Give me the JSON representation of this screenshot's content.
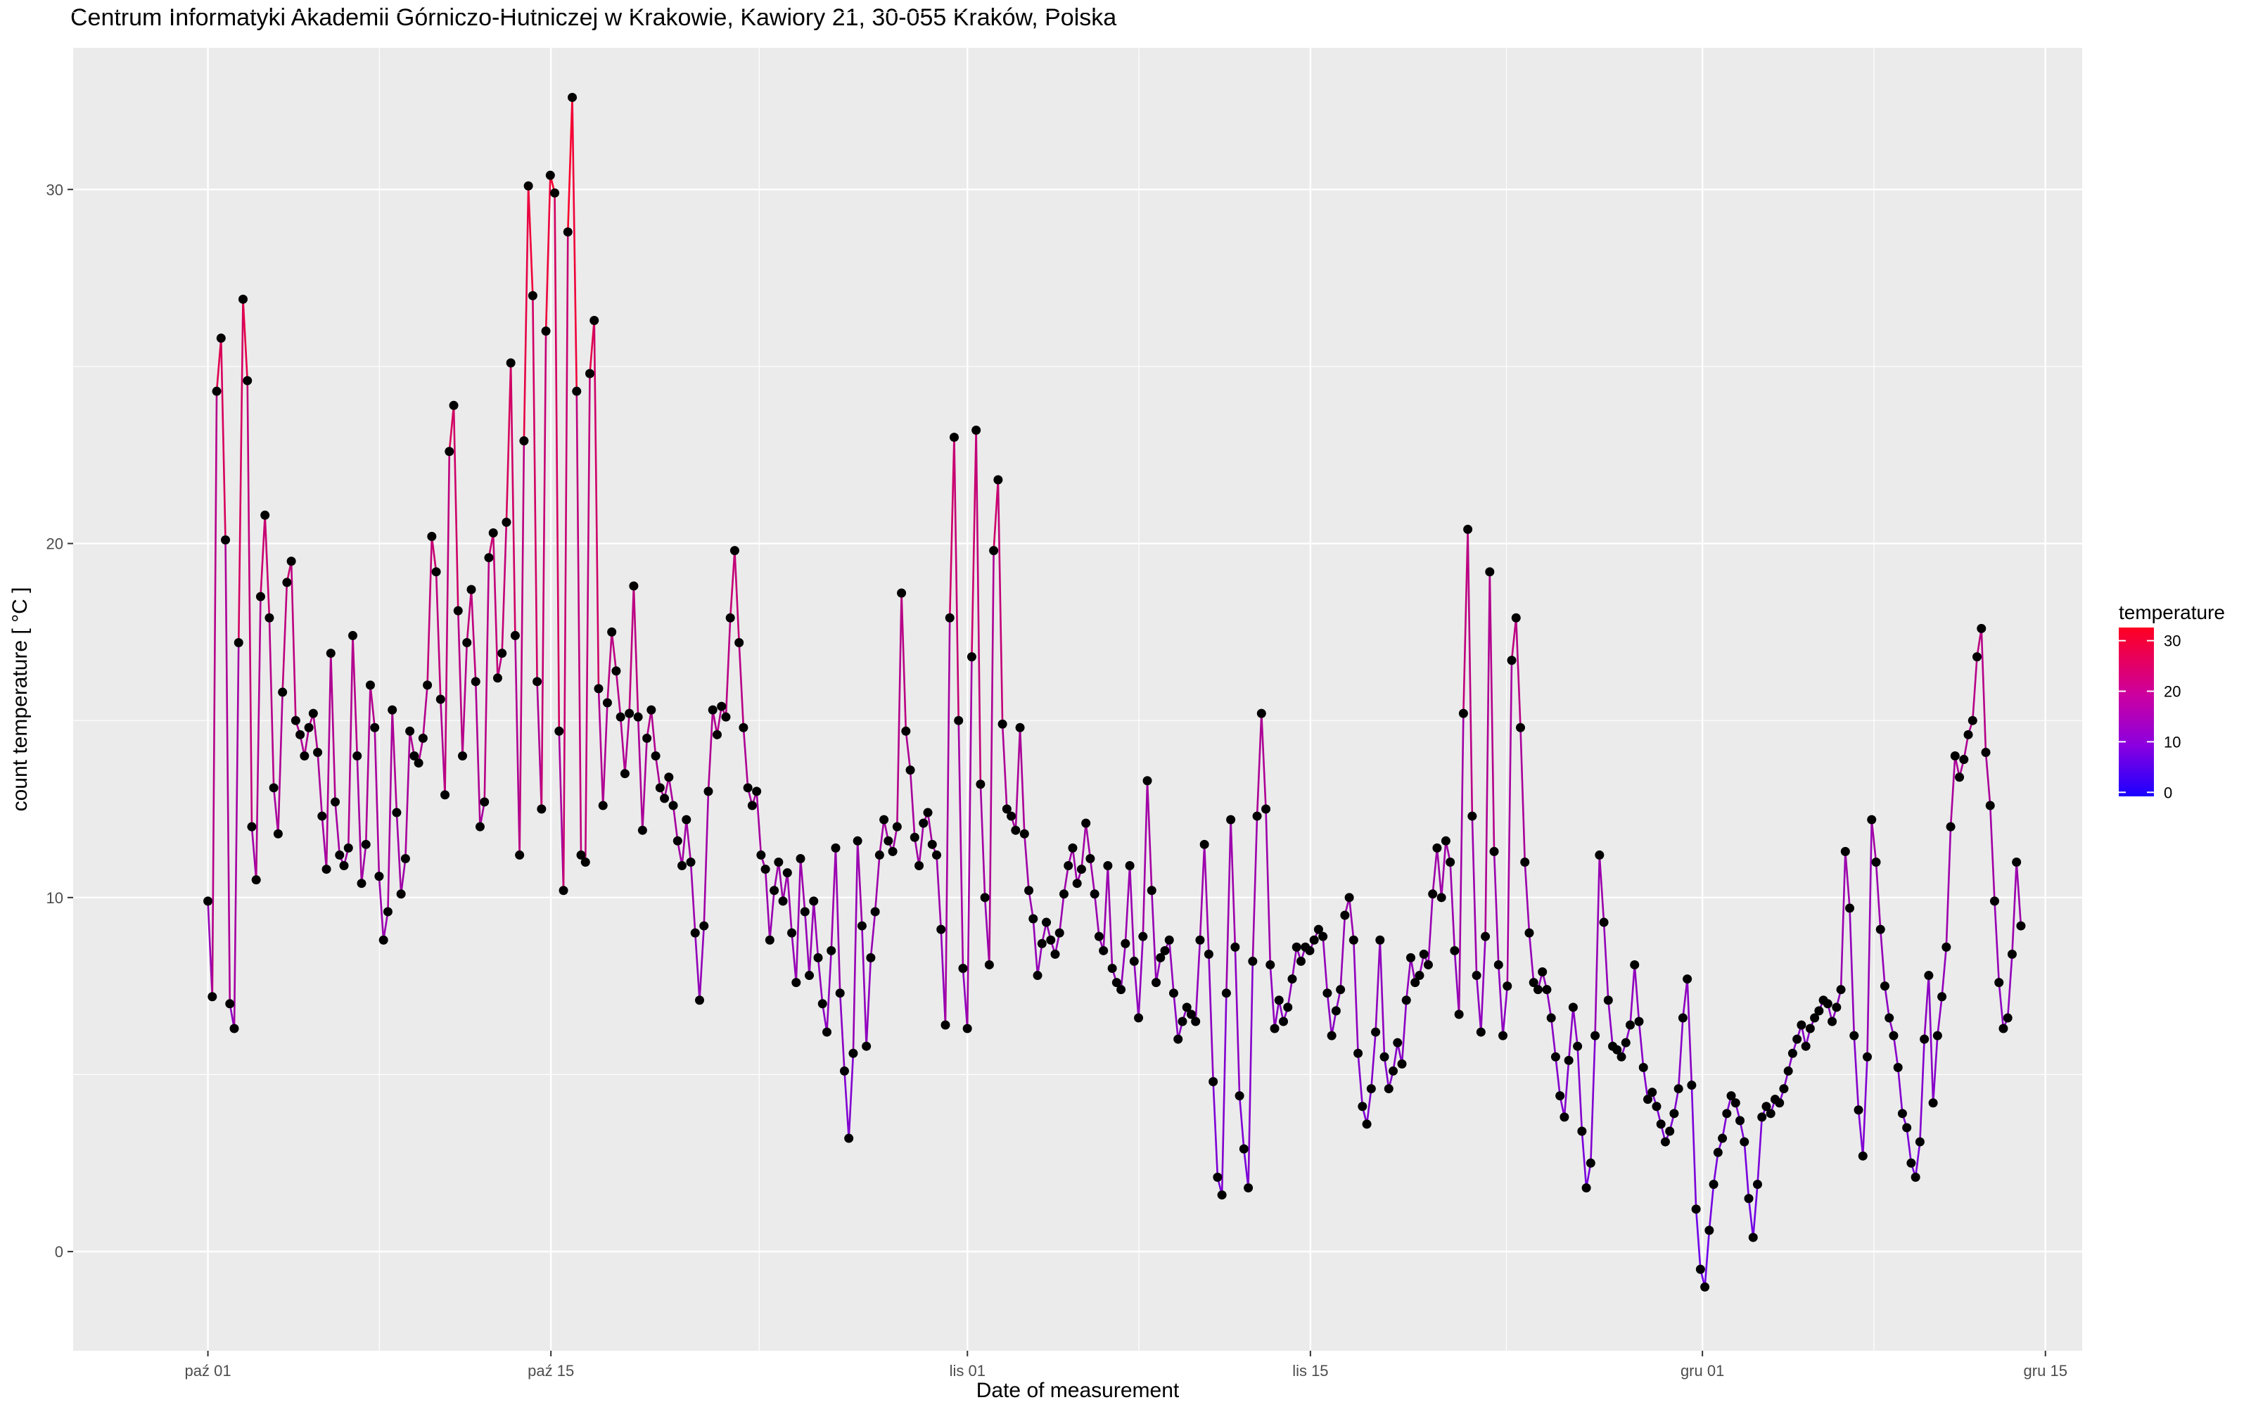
{
  "title": "Centrum Informatyki Akademii Górniczo-Hutniczej w Krakowie, Kawiory 21, 30-055 Kraków, Polska",
  "chart_data": {
    "type": "line",
    "title": "Centrum Informatyki Akademii Górniczo-Hutniczej w Krakowie, Kawiory 21, 30-055 Kraków, Polska",
    "xlabel": "Date of measurement",
    "ylabel": "count temperature [ °C ]",
    "x_range": [
      "2017-09-25T12:00",
      "2017-12-16T12:00"
    ],
    "ylim": [
      -2.8,
      34.0
    ],
    "x_ticks": [
      {
        "date": "2017-10-01",
        "label": "paź 01"
      },
      {
        "date": "2017-10-15",
        "label": "paź 15"
      },
      {
        "date": "2017-11-01",
        "label": "lis 01"
      },
      {
        "date": "2017-11-15",
        "label": "lis 15"
      },
      {
        "date": "2017-12-01",
        "label": "gru 01"
      },
      {
        "date": "2017-12-15",
        "label": "gru 15"
      }
    ],
    "y_ticks": [
      0,
      10,
      20,
      30
    ],
    "grid": true,
    "points_shown": true,
    "point_color": "#000000",
    "color_scale": {
      "low": "#0000ff",
      "high": "#ff0000",
      "mid": "#b000c0"
    },
    "legend": {
      "title": "temperature",
      "labels": [
        0,
        10,
        20,
        30
      ],
      "position": "right"
    },
    "series": [
      {
        "x_start": "2017-10-01T00:00",
        "x_step_hours": 3,
        "x_end": "2017-12-14T00:00",
        "values": [
          9.9,
          7.2,
          24.3,
          25.8,
          20.1,
          7.0,
          6.3,
          17.2,
          26.9,
          24.6,
          12.0,
          10.5,
          18.5,
          20.8,
          17.9,
          13.1,
          11.8,
          15.8,
          18.9,
          19.5,
          15.0,
          14.6,
          14.0,
          14.8,
          15.2,
          14.1,
          12.3,
          10.8,
          16.9,
          12.7,
          11.2,
          10.9,
          11.4,
          17.4,
          14.0,
          10.4,
          11.5,
          16.0,
          14.8,
          10.6,
          8.8,
          9.6,
          15.3,
          12.4,
          10.1,
          11.1,
          14.7,
          14.0,
          13.8,
          14.5,
          16.0,
          20.2,
          19.2,
          15.6,
          12.9,
          22.6,
          23.9,
          18.1,
          14.0,
          17.2,
          18.7,
          16.1,
          12.0,
          12.7,
          19.6,
          20.3,
          16.2,
          16.9,
          20.6,
          25.1,
          17.4,
          11.2,
          22.9,
          30.1,
          27.0,
          16.1,
          12.5,
          26.0,
          30.4,
          29.9,
          14.7,
          10.2,
          28.8,
          32.6,
          24.3,
          11.2,
          11.0,
          24.8,
          26.3,
          15.9,
          12.6,
          15.5,
          17.5,
          16.4,
          15.1,
          13.5,
          15.2,
          18.8,
          15.1,
          11.9,
          14.5,
          15.3,
          14.0,
          13.1,
          12.8,
          13.4,
          12.6,
          11.6,
          10.9,
          12.2,
          11.0,
          9.0,
          7.1,
          9.2,
          13.0,
          15.3,
          14.6,
          15.4,
          15.1,
          17.9,
          19.8,
          17.2,
          14.8,
          13.1,
          12.6,
          13.0,
          11.2,
          10.8,
          8.8,
          10.2,
          11.0,
          9.9,
          10.7,
          9.0,
          7.6,
          11.1,
          9.6,
          7.8,
          9.9,
          8.3,
          7.0,
          6.2,
          8.5,
          11.4,
          7.3,
          5.1,
          3.2,
          5.6,
          11.6,
          9.2,
          5.8,
          8.3,
          9.6,
          11.2,
          12.2,
          11.6,
          11.3,
          12.0,
          18.6,
          14.7,
          13.6,
          11.7,
          10.9,
          12.1,
          12.4,
          11.5,
          11.2,
          9.1,
          6.4,
          17.9,
          23.0,
          15.0,
          8.0,
          6.3,
          16.8,
          23.2,
          13.2,
          10.0,
          8.1,
          19.8,
          21.8,
          14.9,
          12.5,
          12.3,
          11.9,
          14.8,
          11.8,
          10.2,
          9.4,
          7.8,
          8.7,
          9.3,
          8.8,
          8.4,
          9.0,
          10.1,
          10.9,
          11.4,
          10.4,
          10.8,
          12.1,
          11.1,
          10.1,
          8.9,
          8.5,
          10.9,
          8.0,
          7.6,
          7.4,
          8.7,
          10.9,
          8.2,
          6.6,
          8.9,
          13.3,
          10.2,
          7.6,
          8.3,
          8.5,
          8.8,
          7.3,
          6.0,
          6.5,
          6.9,
          6.7,
          6.5,
          8.8,
          11.5,
          8.4,
          4.8,
          2.1,
          1.6,
          7.3,
          12.2,
          8.6,
          4.4,
          2.9,
          1.8,
          8.2,
          12.3,
          15.2,
          12.5,
          8.1,
          6.3,
          7.1,
          6.5,
          6.9,
          7.7,
          8.6,
          8.2,
          8.6,
          8.5,
          8.8,
          9.1,
          8.9,
          7.3,
          6.1,
          6.8,
          7.4,
          9.5,
          10.0,
          8.8,
          5.6,
          4.1,
          3.6,
          4.6,
          6.2,
          8.8,
          5.5,
          4.6,
          5.1,
          5.9,
          5.3,
          7.1,
          8.3,
          7.6,
          7.8,
          8.4,
          8.1,
          10.1,
          11.4,
          10.0,
          11.6,
          11.0,
          8.5,
          6.7,
          15.2,
          20.4,
          12.3,
          7.8,
          6.2,
          8.9,
          19.2,
          11.3,
          8.1,
          6.1,
          7.5,
          16.7,
          17.9,
          14.8,
          11.0,
          9.0,
          7.6,
          7.4,
          7.9,
          7.4,
          6.6,
          5.5,
          4.4,
          3.8,
          5.4,
          6.9,
          5.8,
          3.4,
          1.8,
          2.5,
          6.1,
          11.2,
          9.3,
          7.1,
          5.8,
          5.7,
          5.5,
          5.9,
          6.4,
          8.1,
          6.5,
          5.2,
          4.3,
          4.5,
          4.1,
          3.6,
          3.1,
          3.4,
          3.9,
          4.6,
          6.6,
          7.7,
          4.7,
          1.2,
          -0.5,
          -1.0,
          0.6,
          1.9,
          2.8,
          3.2,
          3.9,
          4.4,
          4.2,
          3.7,
          3.1,
          1.5,
          0.4,
          1.9,
          3.8,
          4.1,
          3.9,
          4.3,
          4.2,
          4.6,
          5.1,
          5.6,
          6.0,
          6.4,
          5.8,
          6.3,
          6.6,
          6.8,
          7.1,
          7.0,
          6.5,
          6.9,
          7.4,
          11.3,
          9.7,
          6.1,
          4.0,
          2.7,
          5.5,
          12.2,
          11.0,
          9.1,
          7.5,
          6.6,
          6.1,
          5.2,
          3.9,
          3.5,
          2.5,
          2.1,
          3.1,
          6.0,
          7.8,
          4.2,
          6.1,
          7.2,
          8.6,
          12.0,
          14.0,
          13.4,
          13.9,
          14.6,
          15.0,
          16.8,
          17.6,
          14.1,
          12.6,
          9.9,
          7.6,
          6.3,
          6.6,
          8.4,
          11.0,
          9.2
        ]
      }
    ]
  }
}
